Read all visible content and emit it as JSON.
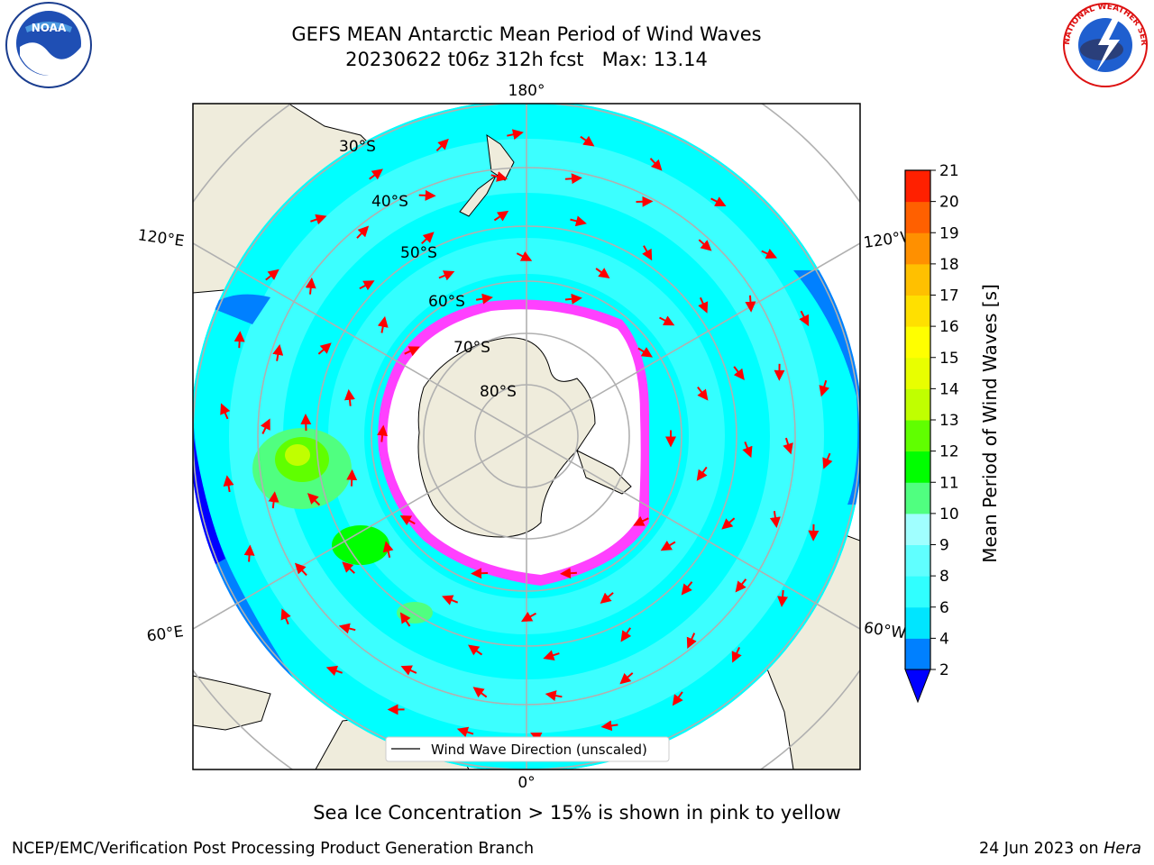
{
  "header": {
    "title_line1": "GEFS MEAN Antarctic Mean Period of Wind Waves",
    "title_line2": "20230622 t06z 312h fcst   Max: 13.14"
  },
  "logos": {
    "left": "noaa-logo",
    "left_text": "NOAA",
    "right": "nws-logo",
    "right_text": "NATIONAL WEATHER SERVICE"
  },
  "map": {
    "projection": "south-polar-stereographic",
    "lon_labels": {
      "top": "180°",
      "bottom": "0°",
      "left_upper": "120°E",
      "left_lower": "60°E",
      "right_upper": "120°W",
      "right_lower": "60°W"
    },
    "lat_labels": [
      "30°S",
      "40°S",
      "50°S",
      "60°S",
      "70°S",
      "80°S"
    ],
    "legend_label": "Wind Wave Direction (unscaled)",
    "colors": {
      "land": "#efecdc",
      "ocean_main": "#00ffff",
      "ocean_light": "#55ffff",
      "ocean_low": "#0080ff",
      "ice_edge": "#ff40ff",
      "green": "#00ff00",
      "arrow": "#ff0000"
    }
  },
  "colorbar": {
    "label": "Mean Period of Wind Waves [s]",
    "ticks": [
      "2",
      "4",
      "6",
      "8",
      "9",
      "10",
      "11",
      "12",
      "13",
      "14",
      "15",
      "16",
      "17",
      "18",
      "19",
      "20",
      "21"
    ],
    "colors": [
      "#0080ff",
      "#00e5ff",
      "#30ffff",
      "#60ffff",
      "#a0ffff",
      "#50ff80",
      "#00ff00",
      "#60ff00",
      "#c0ff00",
      "#e8ff00",
      "#ffff00",
      "#ffe000",
      "#ffc000",
      "#ff9000",
      "#ff6000",
      "#ff2000"
    ],
    "under_color": "#0000ff"
  },
  "footer": {
    "note": "Sea Ice Concentration > 15% is shown in pink to yellow",
    "credit": "NCEP/EMC/Verification Post Processing Product Generation Branch",
    "date": "24 Jun 2023 on ",
    "machine": "Hera"
  }
}
